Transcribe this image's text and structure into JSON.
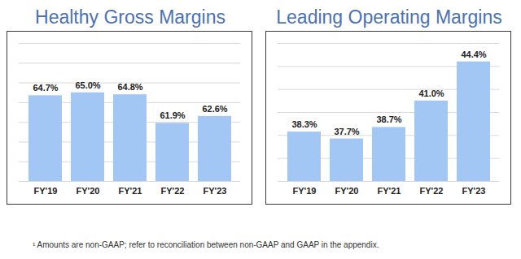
{
  "chart_data": [
    {
      "type": "bar",
      "title": "Healthy Gross Margins",
      "categories": [
        "FY'19",
        "FY'20",
        "FY'21",
        "FY'22",
        "FY'23"
      ],
      "values": [
        64.7,
        65.0,
        64.8,
        61.9,
        62.6
      ],
      "value_labels": [
        "64.7%",
        "65.0%",
        "64.8%",
        "61.9%",
        "62.6%"
      ],
      "color": "#a3c7f5",
      "ylim": [
        56,
        70
      ],
      "yticks": [
        56,
        58,
        60,
        62,
        64,
        66,
        68,
        70
      ],
      "grid": true,
      "data_labels": true,
      "tick_labels": "x"
    },
    {
      "type": "bar",
      "title": "Leading Operating Margins",
      "categories": [
        "FY'19",
        "FY'20",
        "FY'21",
        "FY'22",
        "FY'23"
      ],
      "values": [
        38.3,
        37.7,
        38.7,
        41.0,
        44.4
      ],
      "value_labels": [
        "38.3%",
        "37.7%",
        "38.7%",
        "41.0%",
        "44.4%"
      ],
      "color": "#a3c7f5",
      "ylim": [
        34,
        46
      ],
      "yticks": [
        34,
        36,
        38,
        40,
        42,
        44,
        46
      ],
      "grid": true,
      "data_labels": true,
      "tick_labels": "x"
    }
  ],
  "footnote": "¹ Amounts are non-GAAP; refer to reconciliation between non-GAAP and GAAP in the appendix."
}
